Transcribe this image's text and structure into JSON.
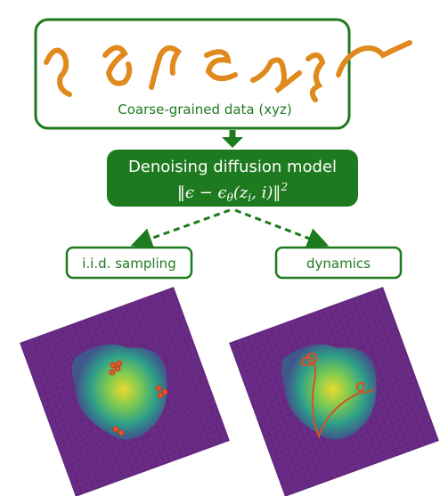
{
  "top_box": {
    "label": "Coarse-grained data (xyz)"
  },
  "model_box": {
    "title": "Denoising diffusion model",
    "formula": [
      "‖ϵ − ϵ",
      "θ",
      "(z",
      "i",
      ", i)‖",
      "2"
    ]
  },
  "branches": [
    {
      "label": "i.i.d. sampling"
    },
    {
      "label": "dynamics"
    }
  ]
}
